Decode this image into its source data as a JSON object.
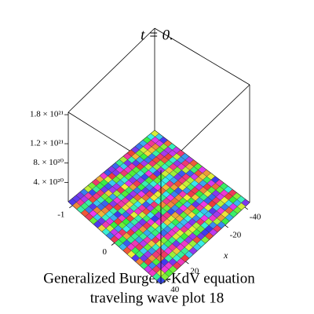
{
  "chart_data": {
    "type": "surface3d",
    "title": "t = 0.",
    "caption": [
      "Generalized Burgers-KdV equation",
      "traveling wave plot 18"
    ],
    "xlabel": "x",
    "xlim": [
      -45,
      45
    ],
    "xticks": [
      -40,
      -20,
      20,
      40
    ],
    "ylim": [
      -1.1,
      1.1
    ],
    "yticks": [
      -1,
      0
    ],
    "zlim": [
      0,
      1.85e+21
    ],
    "zticks": [
      {
        "value": 4e+20,
        "label": "4. × 10²⁰"
      },
      {
        "value": 8e+20,
        "label": "8. × 10²⁰"
      },
      {
        "value": 1.2e+21,
        "label": "1.2 × 10²¹"
      },
      {
        "value": 1.8e+21,
        "label": "1.8 × 10²¹"
      }
    ]
  }
}
